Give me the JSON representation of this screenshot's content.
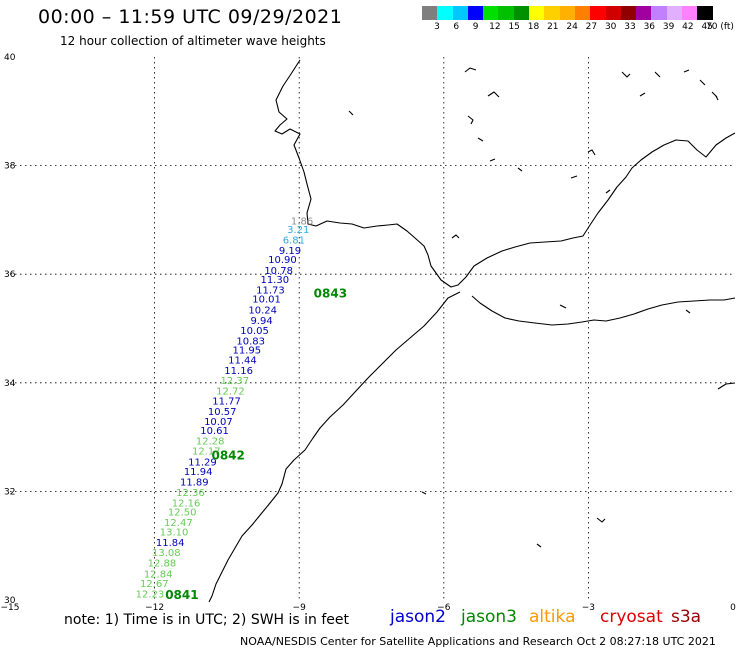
{
  "header": {
    "title": "00:00 – 11:59 UTC 09/29/2021",
    "subtitle": "12 hour collection of altimeter wave heights"
  },
  "scale": {
    "colors": [
      "#7f7f7f",
      "#00ffff",
      "#00c8ff",
      "#0000ff",
      "#00e000",
      "#00c000",
      "#009000",
      "#ffff00",
      "#ffd000",
      "#ffb000",
      "#ff8000",
      "#ff0000",
      "#d00000",
      "#900000",
      "#a000a0",
      "#c080ff",
      "#e0b0ff",
      "#ff80ff",
      "#000000"
    ],
    "ticks": [
      "3",
      "6",
      "9",
      "12",
      "15",
      "18",
      "21",
      "24",
      "27",
      "30",
      "33",
      "36",
      "39",
      "42",
      "45",
      "70 (ft)"
    ]
  },
  "axes": {
    "x_ticks": [
      "−15",
      "−12",
      "−9",
      "−6",
      "−3",
      "0"
    ],
    "y_ticks": [
      "30",
      "32",
      "34",
      "36",
      "38",
      "40"
    ]
  },
  "track": {
    "points": [
      {
        "lon": -9.0,
        "lat": 36.99,
        "label": "1.86",
        "color": "#909090"
      },
      {
        "lon": -9.08,
        "lat": 36.83,
        "label": "3.21",
        "color": "#33aadd"
      },
      {
        "lon": -9.17,
        "lat": 36.64,
        "label": "6.81",
        "color": "#33aadd"
      },
      {
        "lon": -9.25,
        "lat": 36.45,
        "label": "9.19",
        "color": "#0000c0"
      },
      {
        "lon": -9.34,
        "lat": 36.28,
        "label": "10.90",
        "color": "#0000c0"
      },
      {
        "lon": -9.42,
        "lat": 36.08,
        "label": "10.78",
        "color": "#0000c0"
      },
      {
        "lon": -9.5,
        "lat": 35.91,
        "label": "11.30",
        "color": "#0000c0"
      },
      {
        "lon": -9.59,
        "lat": 35.72,
        "label": "11.73",
        "color": "#0000c0"
      },
      {
        "lon": -9.67,
        "lat": 35.55,
        "label": "10.01",
        "color": "#0000c0"
      },
      {
        "lon": -9.75,
        "lat": 35.35,
        "label": "10.24",
        "color": "#0000c0"
      },
      {
        "lon": -9.84,
        "lat": 35.16,
        "label": "9.94",
        "color": "#0000c0"
      },
      {
        "lon": -9.92,
        "lat": 34.97,
        "label": "10.05",
        "color": "#0000c0"
      },
      {
        "lon": -10.0,
        "lat": 34.78,
        "label": "10.83",
        "color": "#0000c0"
      },
      {
        "lon": -10.08,
        "lat": 34.61,
        "label": "11.95",
        "color": "#0000c0"
      },
      {
        "lon": -10.17,
        "lat": 34.43,
        "label": "11.44",
        "color": "#0000c0"
      },
      {
        "lon": -10.25,
        "lat": 34.24,
        "label": "11.16",
        "color": "#0000c0"
      },
      {
        "lon": -10.33,
        "lat": 34.05,
        "label": "12.37",
        "color": "#66cc55"
      },
      {
        "lon": -10.42,
        "lat": 33.86,
        "label": "12.72",
        "color": "#66cc55"
      },
      {
        "lon": -10.5,
        "lat": 33.67,
        "label": "11.77",
        "color": "#0000c0"
      },
      {
        "lon": -10.59,
        "lat": 33.48,
        "label": "10.57",
        "color": "#0000c0"
      },
      {
        "lon": -10.67,
        "lat": 33.3,
        "label": "10.07",
        "color": "#0000c0"
      },
      {
        "lon": -10.75,
        "lat": 33.13,
        "label": "10.61",
        "color": "#0000c0"
      },
      {
        "lon": -10.84,
        "lat": 32.94,
        "label": "12.28",
        "color": "#66cc55"
      },
      {
        "lon": -10.92,
        "lat": 32.75,
        "label": "12.17",
        "color": "#66cc55"
      },
      {
        "lon": -11.0,
        "lat": 32.55,
        "label": "11.29",
        "color": "#0000c0"
      },
      {
        "lon": -11.09,
        "lat": 32.38,
        "label": "11.94",
        "color": "#0000c0"
      },
      {
        "lon": -11.17,
        "lat": 32.18,
        "label": "11.89",
        "color": "#0000c0"
      },
      {
        "lon": -11.25,
        "lat": 31.99,
        "label": "12.36",
        "color": "#66cc55"
      },
      {
        "lon": -11.34,
        "lat": 31.8,
        "label": "12.16",
        "color": "#66cc55"
      },
      {
        "lon": -11.42,
        "lat": 31.63,
        "label": "12.50",
        "color": "#66cc55"
      },
      {
        "lon": -11.5,
        "lat": 31.44,
        "label": "12.47",
        "color": "#66cc55"
      },
      {
        "lon": -11.59,
        "lat": 31.26,
        "label": "13.10",
        "color": "#66cc55"
      },
      {
        "lon": -11.67,
        "lat": 31.07,
        "label": "11.84",
        "color": "#0000c0"
      },
      {
        "lon": -11.75,
        "lat": 30.88,
        "label": "13.08",
        "color": "#66cc55"
      },
      {
        "lon": -11.84,
        "lat": 30.69,
        "label": "12.88",
        "color": "#66cc55"
      },
      {
        "lon": -11.92,
        "lat": 30.49,
        "label": "12.84",
        "color": "#66cc55"
      },
      {
        "lon": -12.0,
        "lat": 30.31,
        "label": "12.67",
        "color": "#66cc55"
      },
      {
        "lon": -12.09,
        "lat": 30.12,
        "label": "12.23",
        "color": "#66cc55"
      }
    ]
  },
  "times": [
    {
      "lon": -8.7,
      "lat": 35.57,
      "label": "0843"
    },
    {
      "lon": -10.82,
      "lat": 32.59,
      "label": "0842"
    },
    {
      "lon": -11.78,
      "lat": 30.02,
      "label": "0841"
    }
  ],
  "footer": {
    "note": "note: 1) Time is in UTC; 2) SWH is in feet",
    "legend": [
      {
        "label": "jason2",
        "color": "#0000cc"
      },
      {
        "label": "jason3",
        "color": "#008800"
      },
      {
        "label": "altika",
        "color": "#ff9900"
      },
      {
        "label": "cryosat",
        "color": "#dd0000"
      },
      {
        "label": "s3a",
        "color": "#990000"
      }
    ],
    "credit": "NOAA/NESDIS Center for Satellite Applications and Research    Oct  2 08:27:18 UTC 2021"
  }
}
